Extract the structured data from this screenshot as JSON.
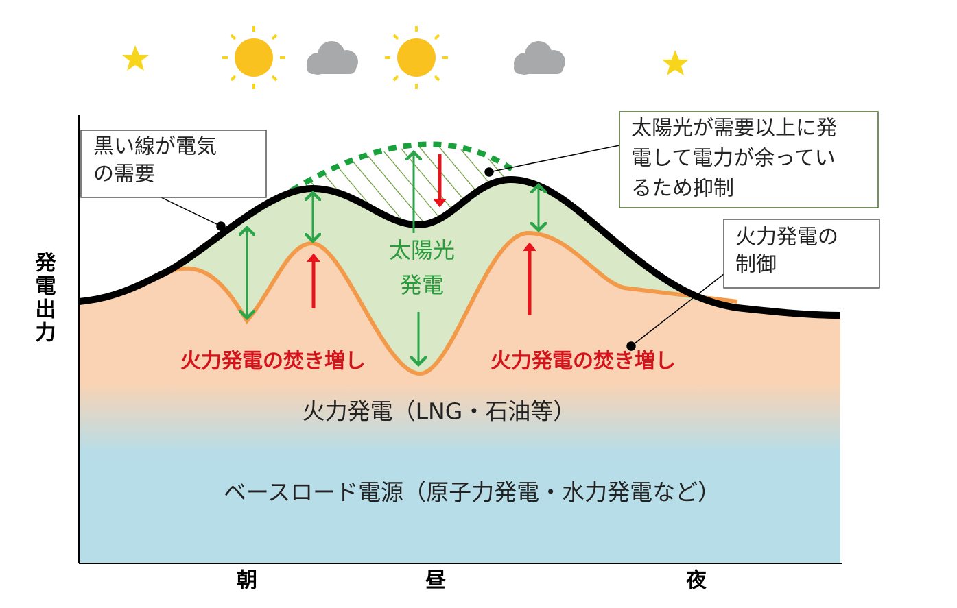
{
  "y_axis_label": "発電出力",
  "x_labels": [
    "朝",
    "昼",
    "夜"
  ],
  "callouts": [
    {
      "lines": [
        "黒い線が電気",
        "の需要"
      ]
    },
    {
      "lines": [
        "太陽光が需要以上に発",
        "電して電力が余ってい",
        "るため抑制"
      ]
    },
    {
      "lines": [
        "火力発電の",
        "制御"
      ]
    }
  ],
  "solar_label": [
    "太陽光",
    "発電"
  ],
  "thermal_increase_labels": [
    "火力発電の焚き増し",
    "火力発電の焚き増し"
  ],
  "thermal_label": "火力発電（LNG・石油等）",
  "baseload_label": "ベースロード電源（原子力発電・水力発電など）"
}
